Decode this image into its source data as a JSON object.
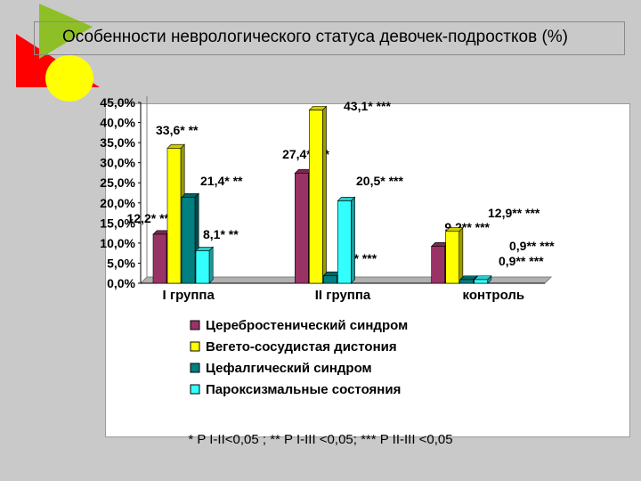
{
  "title": "Особенности неврологического статуса девочек-подростков (%)",
  "footnote": "* P I-II<0,05 ; ** P I-III <0,05; *** P II-III <0,05",
  "colors": {
    "cerebro": "#993366",
    "vegeto": "#ffff00",
    "cephal": "#008080",
    "paroxysmal": "#33ffff",
    "background": "#c9c9c9",
    "logo_green": "#8fbf26",
    "logo_red": "#ff0000",
    "logo_yellow": "#ffff00"
  },
  "chart_data": {
    "type": "bar",
    "categories": [
      "I группа",
      "II группа",
      "контроль"
    ],
    "ylim": [
      0,
      45
    ],
    "yticks": [
      "0,0%",
      "5,0%",
      "10,0%",
      "15,0%",
      "20,0%",
      "25,0%",
      "30,0%",
      "35,0%",
      "40,0%",
      "45,0%"
    ],
    "series": [
      {
        "name": "Церебростенический синдром",
        "values": [
          12.2,
          27.4,
          9.2
        ],
        "labels": [
          "12,2* **",
          "27,4* ***",
          "9,2** ***"
        ]
      },
      {
        "name": "Вегето-сосудистая дистония",
        "values": [
          33.6,
          43.1,
          12.9
        ],
        "labels": [
          "33,6* **",
          "43,1* ***",
          "12,9** ***"
        ]
      },
      {
        "name": "Цефалгический синдром",
        "values": [
          21.4,
          1.9,
          0.9
        ],
        "labels": [
          "21,4* **",
          "1,9* ***",
          "0,9** ***"
        ]
      },
      {
        "name": "Пароксизмальные состояния",
        "values": [
          8.1,
          20.5,
          0.9
        ],
        "labels": [
          "8,1* **",
          "20,5* ***",
          "0,9** ***"
        ]
      }
    ],
    "legend_position": "bottom",
    "grid": false
  }
}
